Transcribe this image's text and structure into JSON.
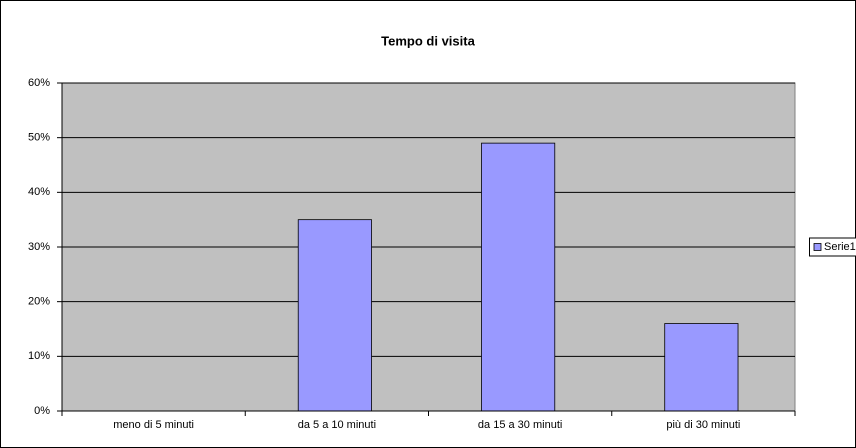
{
  "chart_data": {
    "type": "bar",
    "title": "Tempo di visita",
    "categories": [
      "meno di 5 minuti",
      "da 5 a 10 minuti",
      "da 15 a 30 minuti",
      "più di 30 minuti"
    ],
    "series": [
      {
        "name": "Serie1",
        "color": "#9999ff",
        "values": [
          0,
          35,
          49,
          16
        ]
      }
    ],
    "ylim": [
      0,
      60
    ],
    "yticks": [
      {
        "value": 0,
        "label": "0%"
      },
      {
        "value": 10,
        "label": "10%"
      },
      {
        "value": 20,
        "label": "20%"
      },
      {
        "value": 30,
        "label": "30%"
      },
      {
        "value": 40,
        "label": "40%"
      },
      {
        "value": 50,
        "label": "50%"
      },
      {
        "value": 60,
        "label": "60%"
      }
    ],
    "grid": true,
    "legend": "right",
    "plot_background": "#c0c0c0"
  }
}
